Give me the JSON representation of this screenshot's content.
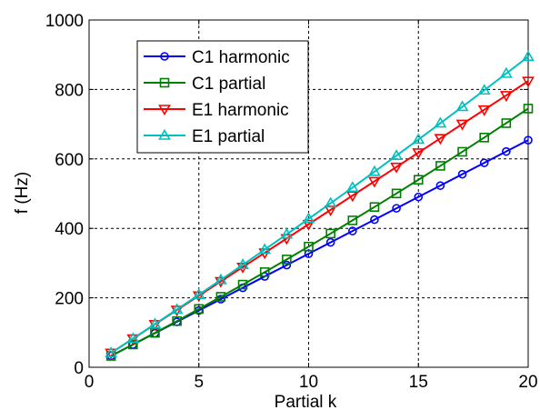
{
  "chart_data": {
    "type": "line",
    "xlabel": "Partial k",
    "ylabel": "f (Hz)",
    "xlim": [
      0,
      20
    ],
    "ylim": [
      0,
      1000
    ],
    "xticks": [
      0,
      5,
      10,
      15,
      20
    ],
    "yticks": [
      0,
      200,
      400,
      600,
      800,
      1000
    ],
    "grid": true,
    "legend_position": "top-left",
    "x": [
      1,
      2,
      3,
      4,
      5,
      6,
      7,
      8,
      9,
      10,
      11,
      12,
      13,
      14,
      15,
      16,
      17,
      18,
      19,
      20
    ],
    "series": [
      {
        "name": "C1 harmonic",
        "color": "#0000ff",
        "marker": "circle",
        "values": [
          32.7,
          65.4,
          98.1,
          130.8,
          163.5,
          196.2,
          228.9,
          261.6,
          294.3,
          327.0,
          359.7,
          392.4,
          425.1,
          457.8,
          490.5,
          523.2,
          555.9,
          588.6,
          621.3,
          654.0
        ]
      },
      {
        "name": "C1 partial",
        "color": "#008000",
        "marker": "square",
        "values": [
          32.7,
          65.6,
          99.0,
          133.0,
          168.0,
          203.0,
          238.0,
          274.0,
          310.5,
          347.5,
          385.0,
          423.0,
          461.5,
          500.5,
          540.0,
          580.0,
          620.5,
          661.5,
          703.0,
          745.0
        ]
      },
      {
        "name": "E1 harmonic",
        "color": "#ff0000",
        "marker": "triangle-down",
        "values": [
          41.2,
          82.4,
          123.6,
          164.8,
          206.0,
          247.2,
          288.4,
          329.6,
          370.8,
          412.0,
          453.2,
          494.4,
          535.6,
          576.8,
          618.0,
          659.2,
          700.4,
          741.6,
          782.8,
          824.0
        ]
      },
      {
        "name": "E1 partial",
        "color": "#00c0c0",
        "marker": "triangle-up",
        "values": [
          41.2,
          82.6,
          124.3,
          166.4,
          208.9,
          251.8,
          295.1,
          338.8,
          382.9,
          427.4,
          472.3,
          517.6,
          563.3,
          609.4,
          655.9,
          702.8,
          750.1,
          797.8,
          845.9,
          894.4
        ]
      }
    ]
  }
}
